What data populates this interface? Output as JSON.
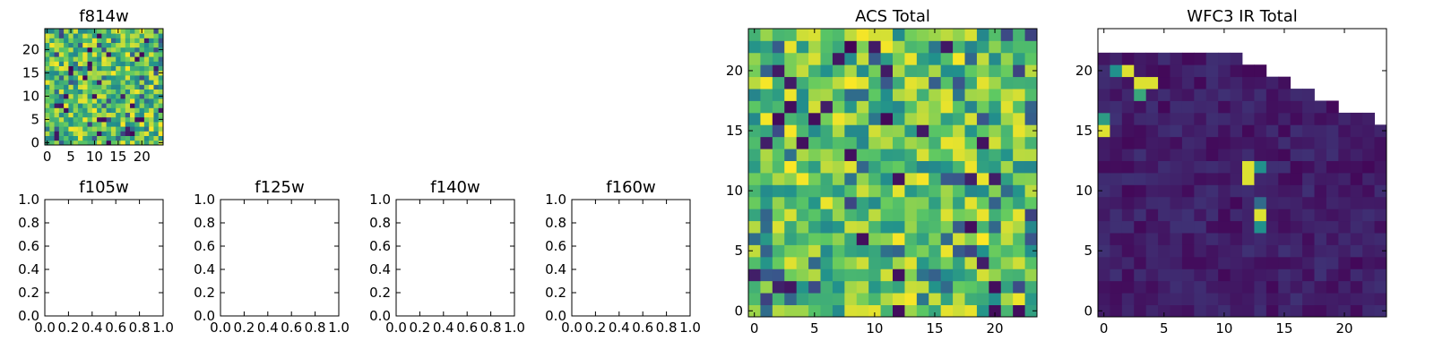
{
  "colormap": {
    "name": "viridis",
    "stops": [
      "#440154",
      "#3b528b",
      "#21918c",
      "#5ec962",
      "#fde725"
    ]
  },
  "chart_data": [
    {
      "id": "f814w",
      "type": "heatmap",
      "title": "f814w",
      "grid_size": 25,
      "xlim": [
        -0.5,
        24.5
      ],
      "ylim": [
        -0.5,
        24.5
      ],
      "xticks": [
        0,
        5,
        10,
        15,
        20
      ],
      "yticks": [
        0,
        5,
        10,
        15,
        20
      ],
      "xtick_labels": [
        "0",
        "5",
        "10",
        "15",
        "20"
      ],
      "ytick_labels": [
        "0",
        "5",
        "10",
        "15",
        "20"
      ],
      "values_pattern": "noisy field, mostly high values (0.5-1.0) with a few low pixels"
    },
    {
      "id": "f105w",
      "type": "heatmap",
      "title": "f105w",
      "xlim": [
        0,
        1
      ],
      "ylim": [
        0,
        1
      ],
      "xticks": [
        0,
        0.2,
        0.4,
        0.6,
        0.8,
        1.0
      ],
      "yticks": [
        0,
        0.2,
        0.4,
        0.6,
        0.8,
        1.0
      ],
      "xtick_labels": [
        "0.0",
        "0.2",
        "0.4",
        "0.6",
        "0.8",
        "1.0"
      ],
      "ytick_labels": [
        "0.0",
        "0.2",
        "0.4",
        "0.6",
        "0.8",
        "1.0"
      ],
      "empty": true
    },
    {
      "id": "f125w",
      "type": "heatmap",
      "title": "f125w",
      "xlim": [
        0,
        1
      ],
      "ylim": [
        0,
        1
      ],
      "xticks": [
        0,
        0.2,
        0.4,
        0.6,
        0.8,
        1.0
      ],
      "yticks": [
        0,
        0.2,
        0.4,
        0.6,
        0.8,
        1.0
      ],
      "xtick_labels": [
        "0.0",
        "0.2",
        "0.4",
        "0.6",
        "0.8",
        "1.0"
      ],
      "ytick_labels": [
        "0.0",
        "0.2",
        "0.4",
        "0.6",
        "0.8",
        "1.0"
      ],
      "empty": true
    },
    {
      "id": "f140w",
      "type": "heatmap",
      "title": "f140w",
      "xlim": [
        0,
        1
      ],
      "ylim": [
        0,
        1
      ],
      "xticks": [
        0,
        0.2,
        0.4,
        0.6,
        0.8,
        1.0
      ],
      "yticks": [
        0,
        0.2,
        0.4,
        0.6,
        0.8,
        1.0
      ],
      "xtick_labels": [
        "0.0",
        "0.2",
        "0.4",
        "0.6",
        "0.8",
        "1.0"
      ],
      "ytick_labels": [
        "0.0",
        "0.2",
        "0.4",
        "0.6",
        "0.8",
        "1.0"
      ],
      "empty": true
    },
    {
      "id": "f160w",
      "type": "heatmap",
      "title": "f160w",
      "xlim": [
        0,
        1
      ],
      "ylim": [
        0,
        1
      ],
      "xticks": [
        0,
        0.2,
        0.4,
        0.6,
        0.8,
        1.0
      ],
      "yticks": [
        0,
        0.2,
        0.4,
        0.6,
        0.8,
        1.0
      ],
      "xtick_labels": [
        "0.0",
        "0.2",
        "0.4",
        "0.6",
        "0.8",
        "1.0"
      ],
      "ytick_labels": [
        "0.0",
        "0.2",
        "0.4",
        "0.6",
        "0.8",
        "1.0"
      ],
      "empty": true
    },
    {
      "id": "acs_total",
      "type": "heatmap",
      "title": "ACS Total",
      "grid_size": 24,
      "xlim": [
        -0.5,
        23.5
      ],
      "ylim": [
        -0.5,
        23.5
      ],
      "xticks": [
        0,
        5,
        10,
        15,
        20
      ],
      "yticks": [
        0,
        5,
        10,
        15,
        20
      ],
      "xtick_labels": [
        "0",
        "5",
        "10",
        "15",
        "20"
      ],
      "ytick_labels": [
        "0",
        "5",
        "10",
        "15",
        "20"
      ],
      "values_pattern": "noisy field, mostly high values (0.5-1.0) with scattered low pixels"
    },
    {
      "id": "wfc3_ir_total",
      "type": "heatmap",
      "title": "WFC3 IR Total",
      "grid_size": 24,
      "xlim": [
        -0.5,
        23.5
      ],
      "ylim": [
        -0.5,
        23.5
      ],
      "xticks": [
        0,
        5,
        10,
        15,
        20
      ],
      "yticks": [
        0,
        5,
        10,
        15,
        20
      ],
      "xtick_labels": [
        "0",
        "5",
        "10",
        "15",
        "20"
      ],
      "ytick_labels": [
        "0",
        "5",
        "10",
        "15",
        "20"
      ],
      "row_extent": [
        21,
        21,
        21,
        21,
        21,
        21,
        21,
        21,
        21,
        21,
        21,
        21,
        20,
        20,
        19,
        19,
        18,
        18,
        17,
        17,
        16,
        16,
        16,
        15
      ],
      "hot_pixels": [
        {
          "x": 2,
          "y": 20,
          "value": 0.95
        },
        {
          "x": 3,
          "y": 19,
          "value": 0.95
        },
        {
          "x": 4,
          "y": 19,
          "value": 0.95
        },
        {
          "x": 1,
          "y": 20,
          "value": 0.5
        },
        {
          "x": 0,
          "y": 15,
          "value": 0.95
        },
        {
          "x": 0,
          "y": 16,
          "value": 0.55
        },
        {
          "x": 3,
          "y": 18,
          "value": 0.6
        },
        {
          "x": 12,
          "y": 12,
          "value": 0.95
        },
        {
          "x": 12,
          "y": 11,
          "value": 0.95
        },
        {
          "x": 13,
          "y": 12,
          "value": 0.5
        },
        {
          "x": 13,
          "y": 8,
          "value": 0.95
        },
        {
          "x": 13,
          "y": 7,
          "value": 0.5
        },
        {
          "x": 13,
          "y": 9,
          "value": 0.35
        }
      ],
      "values_pattern": "mostly low values (~0.0-0.15) with a staircase-shaped upper-right cutoff and a few bright pixels"
    }
  ]
}
